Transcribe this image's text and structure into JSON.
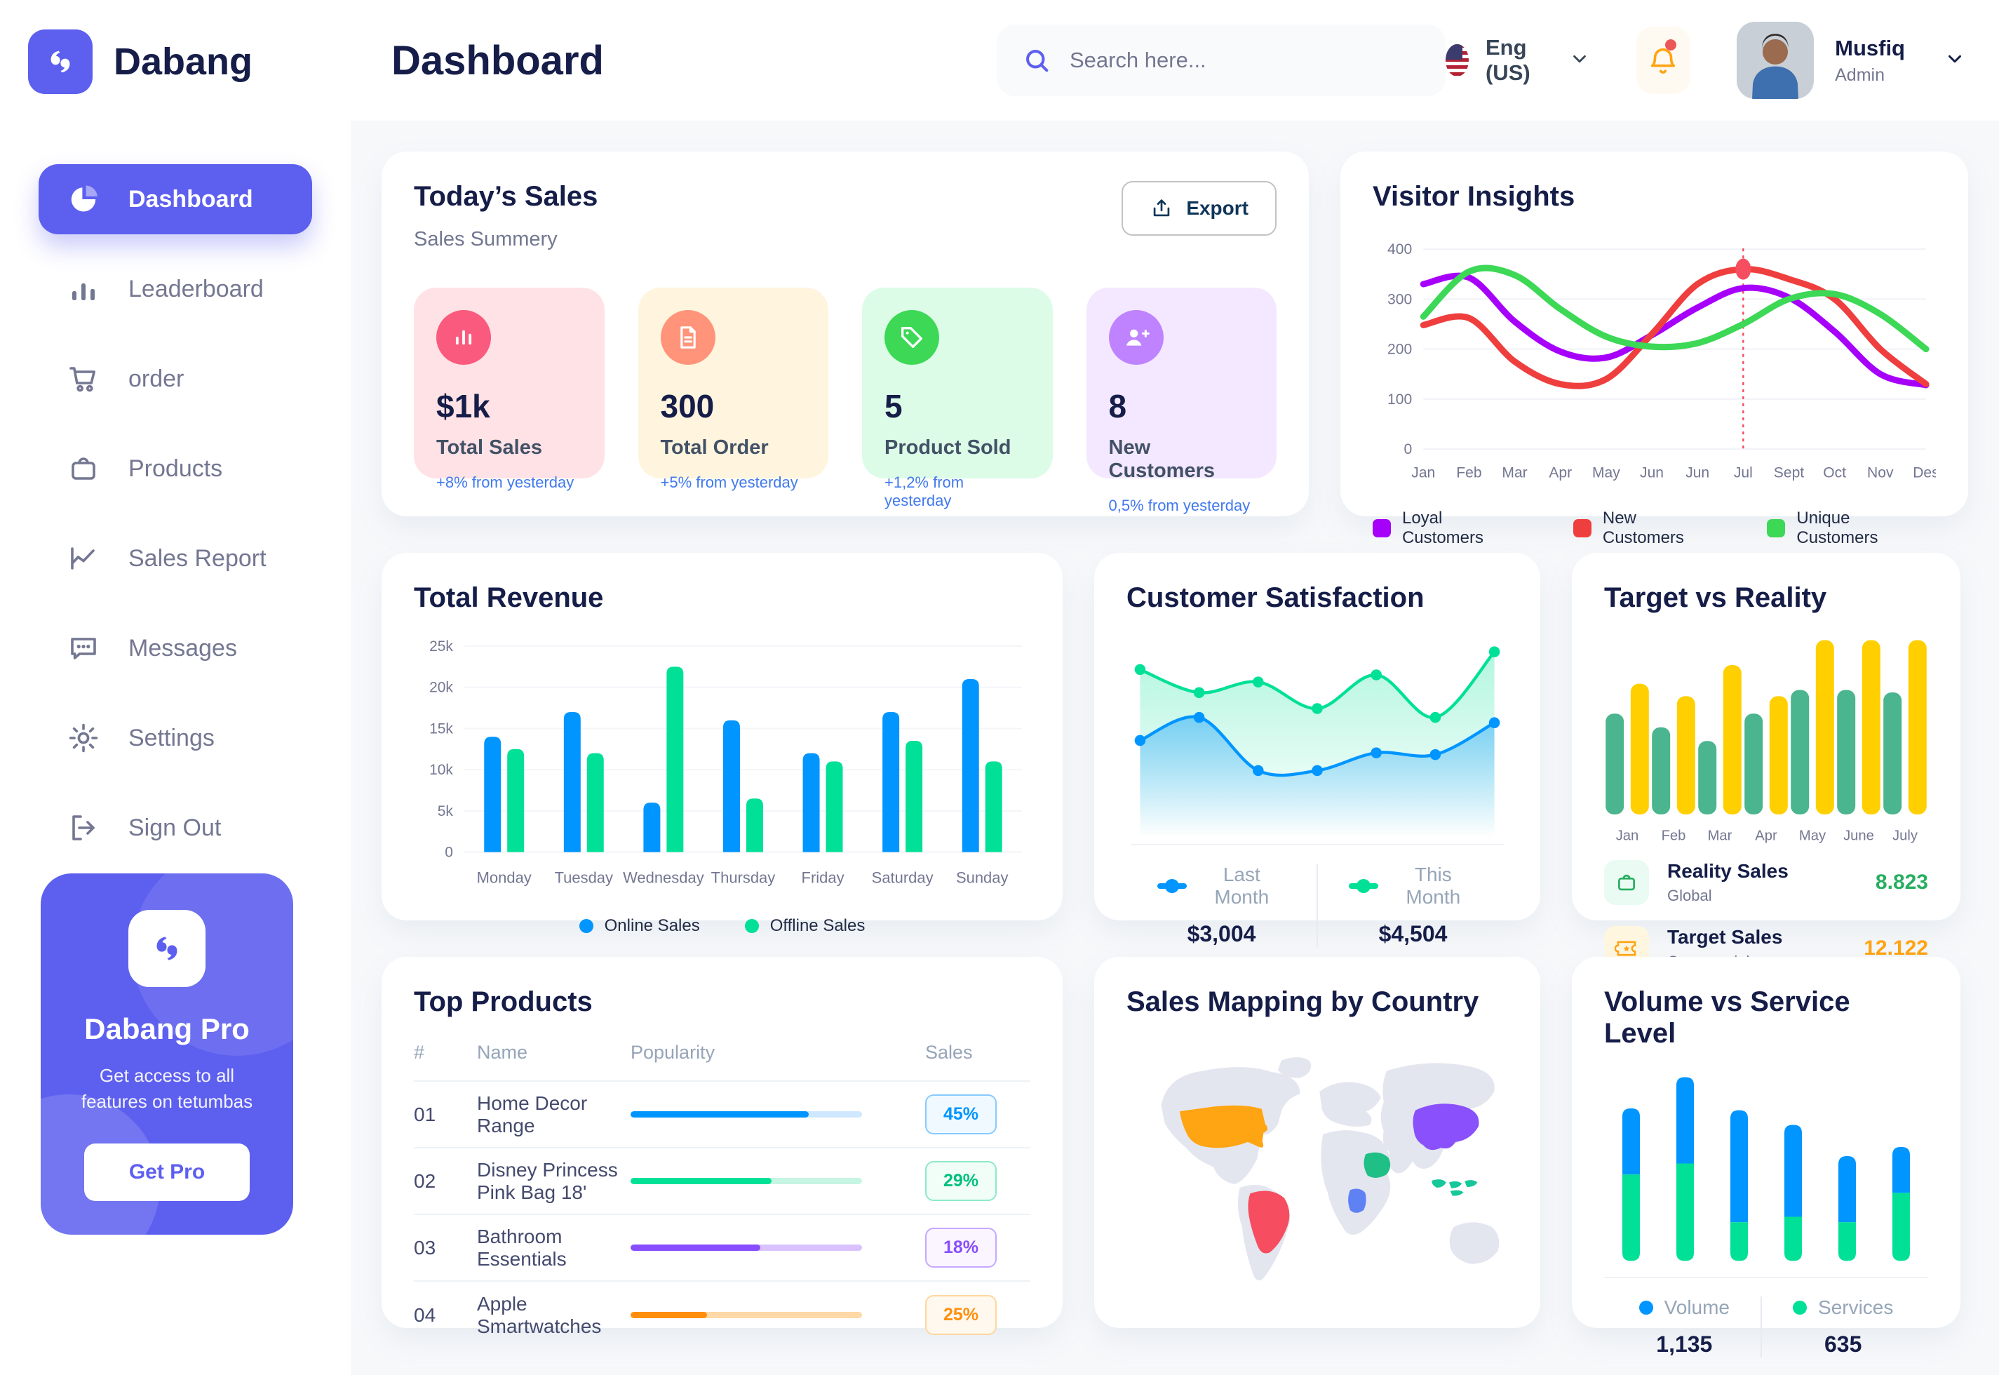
{
  "app": {
    "brand": "Dabang",
    "accent_color": "#5D5FEF"
  },
  "header": {
    "title": "Dashboard",
    "search_placeholder": "Search here...",
    "language": "Eng (US)",
    "user": {
      "name": "Musfiq",
      "role": "Admin"
    }
  },
  "sidebar": {
    "items": [
      {
        "label": "Dashboard",
        "icon": "dashboard-icon",
        "active": true
      },
      {
        "label": "Leaderboard",
        "icon": "leaderboard-icon",
        "active": false
      },
      {
        "label": "order",
        "icon": "cart-icon",
        "active": false
      },
      {
        "label": "Products",
        "icon": "bag-icon",
        "active": false
      },
      {
        "label": "Sales Report",
        "icon": "line-chart-icon",
        "active": false
      },
      {
        "label": "Messages",
        "icon": "message-icon",
        "active": false
      },
      {
        "label": "Settings",
        "icon": "gear-icon",
        "active": false
      },
      {
        "label": "Sign Out",
        "icon": "signout-icon",
        "active": false
      }
    ],
    "pro": {
      "title": "Dabang Pro",
      "desc": "Get access to all features on tetumbas",
      "cta": "Get Pro"
    }
  },
  "today_sales": {
    "title": "Today’s Sales",
    "subtitle": "Sales Summery",
    "export_label": "Export",
    "cards": [
      {
        "value": "$1k",
        "label": "Total Sales",
        "delta": "+8% from yesterday",
        "bg": "#FFE2E5",
        "icon_bg": "#FA5A7D",
        "icon": "bar-stats-icon"
      },
      {
        "value": "300",
        "label": "Total Order",
        "delta": "+5% from yesterday",
        "bg": "#FFF4DE",
        "icon_bg": "#FF947A",
        "icon": "file-icon"
      },
      {
        "value": "5",
        "label": "Product Sold",
        "delta": "+1,2% from yesterday",
        "bg": "#DCFCE7",
        "icon_bg": "#3CD856",
        "icon": "tag-icon"
      },
      {
        "value": "8",
        "label": "New Customers",
        "delta": "0,5% from yesterday",
        "bg": "#F3E8FF",
        "icon_bg": "#BF83FF",
        "icon": "user-plus-icon"
      }
    ]
  },
  "visitor_insights": {
    "title": "Visitor Insights",
    "type": "line",
    "x_labels": [
      "Jan",
      "Feb",
      "Mar",
      "Apr",
      "May",
      "Jun",
      "Jun",
      "Jul",
      "Sept",
      "Oct",
      "Nov",
      "Des"
    ],
    "y_ticks": [
      0,
      100,
      200,
      300,
      400
    ],
    "y_max": 400,
    "series": [
      {
        "name": "Loyal Customers",
        "color": "#A700FA",
        "values": [
          330,
          343,
          255,
          195,
          183,
          228,
          283,
          322,
          303,
          235,
          150,
          128
        ]
      },
      {
        "name": "New Customers",
        "color": "#EF3E3E",
        "values": [
          248,
          262,
          175,
          130,
          140,
          230,
          330,
          360,
          340,
          300,
          200,
          130
        ]
      },
      {
        "name": "Unique Customers",
        "color": "#3CD856",
        "values": [
          265,
          355,
          348,
          280,
          225,
          205,
          212,
          250,
          300,
          310,
          270,
          200
        ]
      }
    ],
    "marker": {
      "x_index": 7,
      "value": 360,
      "color": "#F64E60"
    }
  },
  "total_revenue": {
    "title": "Total Revenue",
    "type": "bar",
    "categories": [
      "Monday",
      "Tuesday",
      "Wednesday",
      "Thursday",
      "Friday",
      "Saturday",
      "Sunday"
    ],
    "y_tick_labels": [
      "0",
      "5k",
      "10k",
      "15k",
      "20k",
      "25k"
    ],
    "y_max": 25,
    "series": [
      {
        "name": "Online Sales",
        "color": "#0095FF",
        "values": [
          14,
          17,
          6,
          16,
          12,
          17,
          21
        ]
      },
      {
        "name": "Offline Sales",
        "color": "#00E096",
        "values": [
          12.5,
          12,
          22.5,
          6.5,
          11,
          13.5,
          11
        ]
      }
    ]
  },
  "customer_satisfaction": {
    "title": "Customer Satisfaction",
    "type": "area",
    "series": [
      {
        "name": "Last Month",
        "color": "#0095FF",
        "total": "$3,004",
        "values": [
          45,
          58,
          28,
          28,
          38,
          37,
          55
        ]
      },
      {
        "name": "This Month",
        "color": "#00E096",
        "total": "$4,504",
        "values": [
          85,
          72,
          78,
          63,
          82,
          58,
          95
        ]
      }
    ]
  },
  "target_vs_reality": {
    "title": "Target vs Reality",
    "type": "bar",
    "categories": [
      "Jan",
      "Feb",
      "Mar",
      "Apr",
      "May",
      "June",
      "July"
    ],
    "y_max": 14,
    "series": [
      {
        "name": "Reality Sales",
        "color": "#4AB58E",
        "values": [
          8.1,
          7.0,
          5.9,
          8.1,
          10,
          10,
          9.8
        ]
      },
      {
        "name": "Target Sales",
        "color": "#FFCF00",
        "values": [
          10.5,
          9.5,
          12,
          9.5,
          14,
          14,
          14
        ]
      }
    ],
    "legend": [
      {
        "title": "Reality Sales",
        "sub": "Global",
        "value": "8.823",
        "value_color": "#27AE60",
        "icon": "shopping-bag-icon",
        "icon_bg": "#E9FBF3",
        "icon_color": "#27AE60"
      },
      {
        "title": "Target Sales",
        "sub": "Commercial",
        "value": "12.122",
        "value_color": "#FFA412",
        "icon": "ticket-icon",
        "icon_bg": "#FFF6E0",
        "icon_color": "#FFA412"
      }
    ]
  },
  "top_products": {
    "title": "Top Products",
    "headers": [
      "#",
      "Name",
      "Popularity",
      "Sales"
    ],
    "rows": [
      {
        "num": "01",
        "name": "Home Decor Range",
        "popularity_pct": 77,
        "sales": "45%",
        "bar": "#0095FF",
        "track": "#CFE7FF",
        "badge_bg": "#F0F9FF",
        "badge_border": "#86CAFF",
        "badge_text": "#0095FF"
      },
      {
        "num": "02",
        "name": "Disney Princess Pink Bag 18'",
        "popularity_pct": 61,
        "sales": "29%",
        "bar": "#00E096",
        "track": "#C7F5E4",
        "badge_bg": "#F1FDF7",
        "badge_border": "#8CEAC6",
        "badge_text": "#00C07E"
      },
      {
        "num": "03",
        "name": "Bathroom Essentials",
        "popularity_pct": 56,
        "sales": "18%",
        "bar": "#884DFF",
        "track": "#D9C2FF",
        "badge_bg": "#FAF5FF",
        "badge_border": "#C5A8FF",
        "badge_text": "#884DFF"
      },
      {
        "num": "04",
        "name": "Apple Smartwatches",
        "popularity_pct": 33,
        "sales": "25%",
        "bar": "#FF8F0D",
        "track": "#FFD9A7",
        "badge_bg": "#FFF8EE",
        "badge_border": "#FFD79E",
        "badge_text": "#FF8F0D"
      }
    ]
  },
  "sales_mapping": {
    "title": "Sales Mapping by Country",
    "base_color": "#E4E6EF",
    "countries": {
      "usa": "#FFA412",
      "brazil": "#F64E60",
      "saudi_arabia": "#1FBF86",
      "dr_congo": "#5E81F4",
      "china": "#8950FC",
      "indonesia": "#16C79A"
    }
  },
  "volume_service": {
    "title": "Volume vs Service Level",
    "type": "stacked-bar",
    "series": [
      {
        "name": "Volume",
        "color": "#0095FF",
        "total": "1,135",
        "values": [
          36,
          47,
          61,
          50,
          36,
          25
        ]
      },
      {
        "name": "Services",
        "color": "#00E096",
        "total": "635",
        "values": [
          47,
          53,
          21,
          24,
          21,
          37
        ]
      }
    ]
  }
}
